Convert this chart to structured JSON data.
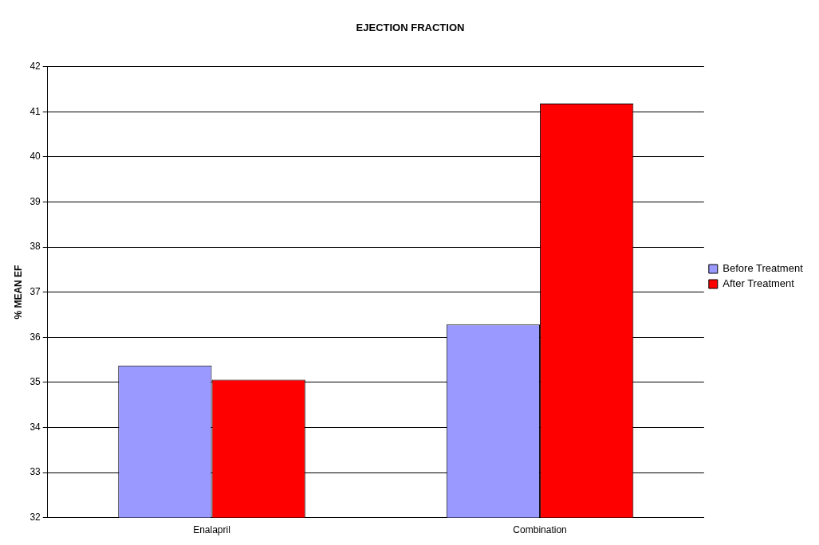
{
  "chart_data": {
    "type": "bar",
    "title": "EJECTION FRACTION",
    "ylabel": "% MEAN EF",
    "categories": [
      "Enalapril",
      "Combination"
    ],
    "series": [
      {
        "name": "Before Treatment",
        "color": "#9999ff",
        "values": [
          35.37,
          36.28
        ]
      },
      {
        "name": "After Treatment",
        "color": "#ff0000",
        "values": [
          35.06,
          41.18
        ]
      }
    ],
    "ylim": [
      32,
      42
    ],
    "yticks": [
      32,
      33,
      34,
      35,
      36,
      37,
      38,
      39,
      40,
      41,
      42
    ],
    "grid": "y",
    "legend": "right"
  }
}
